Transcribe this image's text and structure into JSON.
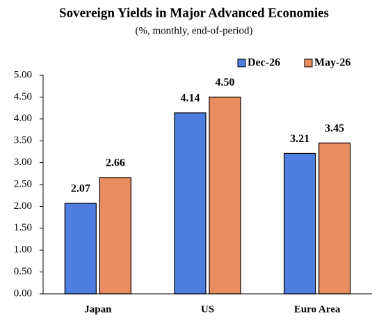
{
  "chart_data": {
    "type": "bar",
    "title": "Sovereign Yields in Major Advanced Economies",
    "subtitle": "(%, monthly, end-of-period)",
    "categories": [
      "Japan",
      "US",
      "Euro Area"
    ],
    "series": [
      {
        "name": "Dec-26",
        "color": "#507ee0",
        "values": [
          2.07,
          4.14,
          3.21
        ],
        "value_labels": [
          "2.07",
          "4.14",
          "3.21"
        ]
      },
      {
        "name": "May-26",
        "color": "#e98c5f",
        "values": [
          2.66,
          4.5,
          3.45
        ],
        "value_labels": [
          "2.66",
          "4.50",
          "3.45"
        ]
      }
    ],
    "ylim": [
      0,
      5
    ],
    "yticks": [
      {
        "value": 0,
        "label": "0.00"
      },
      {
        "value": 0.5,
        "label": "0.50"
      },
      {
        "value": 1,
        "label": "1.00"
      },
      {
        "value": 1.5,
        "label": "1.50"
      },
      {
        "value": 2,
        "label": "2.00"
      },
      {
        "value": 2.5,
        "label": "2.50"
      },
      {
        "value": 3,
        "label": "3.00"
      },
      {
        "value": 3.5,
        "label": "3.50"
      },
      {
        "value": 4,
        "label": "4.00"
      },
      {
        "value": 4.5,
        "label": "4.50"
      },
      {
        "value": 5,
        "label": "5.00"
      }
    ],
    "grid": false,
    "legend": "top-right"
  }
}
